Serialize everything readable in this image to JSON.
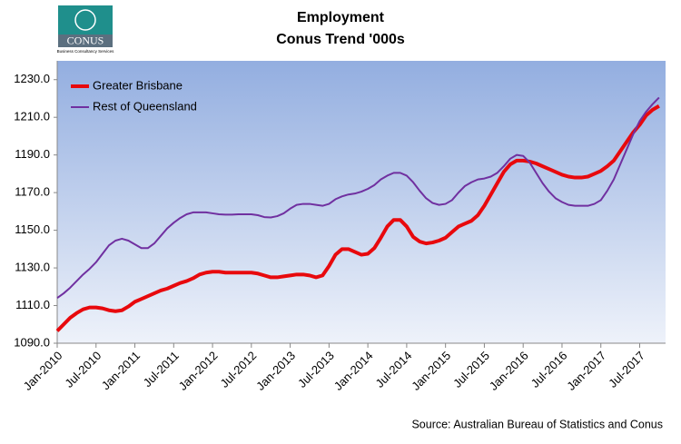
{
  "chart_data": {
    "type": "line",
    "logo": {
      "name": "CONUS",
      "tagline": "Business Consultancy Services"
    },
    "title": "Employment",
    "subtitle": "Conus Trend '000s",
    "source": "Source: Australian Bureau of Statistics and Conus",
    "categories": [
      "Jan-2010",
      null,
      null,
      null,
      null,
      null,
      "Jul-2010",
      null,
      null,
      null,
      null,
      null,
      "Jan-2011",
      null,
      null,
      null,
      null,
      null,
      "Jul-2011",
      null,
      null,
      null,
      null,
      null,
      "Jan-2012",
      null,
      null,
      null,
      null,
      null,
      "Jul-2012",
      null,
      null,
      null,
      null,
      null,
      "Jan-2013",
      null,
      null,
      null,
      null,
      null,
      "Jul-2013",
      null,
      null,
      null,
      null,
      null,
      "Jan-2014",
      null,
      null,
      null,
      null,
      null,
      "Jul-2014",
      null,
      null,
      null,
      null,
      null,
      "Jan-2015",
      null,
      null,
      null,
      null,
      null,
      "Jul-2015",
      null,
      null,
      null,
      null,
      null,
      "Jan-2016",
      null,
      null,
      null,
      null,
      null,
      "Jul-2016",
      null,
      null,
      null,
      null,
      null,
      "Jan-2017",
      null,
      null,
      null,
      null,
      null,
      "Jul-2017",
      null,
      null,
      null
    ],
    "series": [
      {
        "name": "Greater Brisbane",
        "color": "#e8090d",
        "values": [
          1096.5,
          1100,
          1103.5,
          1106,
          1108,
          1109,
          1109,
          1108.5,
          1107.5,
          1107,
          1107.5,
          1109.5,
          1112,
          1113.5,
          1115,
          1116.5,
          1118,
          1119,
          1120.5,
          1122,
          1123,
          1124.5,
          1126.5,
          1127.5,
          1128,
          1128,
          1127.5,
          1127.5,
          1127.5,
          1127.5,
          1127.5,
          1127,
          1126,
          1125,
          1125,
          1125.5,
          1126,
          1126.5,
          1126.5,
          1126,
          1125,
          1126,
          1131,
          1137,
          1140,
          1140,
          1138.5,
          1137,
          1137.5,
          1140.5,
          1146,
          1152,
          1155.5,
          1155.5,
          1152,
          1146.5,
          1144,
          1143,
          1143.5,
          1144.5,
          1146,
          1149,
          1152,
          1153.5,
          1155,
          1158,
          1163,
          1169,
          1175,
          1181,
          1185,
          1187,
          1187,
          1186.5,
          1185.5,
          1184,
          1182.5,
          1181,
          1179.5,
          1178.5,
          1178,
          1178,
          1178.5,
          1180,
          1181.5,
          1184,
          1187,
          1192,
          1197,
          1202,
          1206,
          1211,
          1214,
          1216
        ]
      },
      {
        "name": "Rest of Queensland",
        "color": "#7030a0",
        "values": [
          1114,
          1116.5,
          1119.5,
          1123,
          1126.5,
          1129.5,
          1133,
          1137.5,
          1142,
          1144.5,
          1145.5,
          1144.5,
          1142.5,
          1140.5,
          1140.5,
          1143,
          1147,
          1151,
          1154,
          1156.5,
          1158.5,
          1159.5,
          1159.5,
          1159.5,
          1159,
          1158.5,
          1158.3,
          1158.3,
          1158.5,
          1158.5,
          1158.5,
          1158,
          1157,
          1156.8,
          1157.5,
          1159,
          1161.5,
          1163.5,
          1164,
          1164,
          1163.5,
          1163,
          1164,
          1166.5,
          1168,
          1169,
          1169.5,
          1170.5,
          1172,
          1174,
          1177,
          1179,
          1180.5,
          1180.5,
          1179,
          1175.5,
          1171,
          1167,
          1164.5,
          1163.5,
          1164,
          1166,
          1170,
          1173.5,
          1175.5,
          1177,
          1177.5,
          1178.5,
          1180.5,
          1184,
          1188,
          1190,
          1189.5,
          1186,
          1180.5,
          1175,
          1170.5,
          1167,
          1165,
          1163.5,
          1163,
          1163,
          1163,
          1164,
          1166,
          1171,
          1177,
          1185,
          1193,
          1201,
          1208,
          1213,
          1217,
          1220.5
        ]
      }
    ],
    "ylim": [
      1090,
      1240
    ],
    "yticks": [
      {
        "value": 1090,
        "label": "1090.0"
      },
      {
        "value": 1110,
        "label": "1110.0"
      },
      {
        "value": 1130,
        "label": "1130.0"
      },
      {
        "value": 1150,
        "label": "1150.0"
      },
      {
        "value": 1170,
        "label": "1170.0"
      },
      {
        "value": 1190,
        "label": "1190.0"
      },
      {
        "value": 1210,
        "label": "1210.0"
      },
      {
        "value": 1230,
        "label": "1230.0"
      }
    ],
    "grid": false,
    "legend": "top-left"
  }
}
